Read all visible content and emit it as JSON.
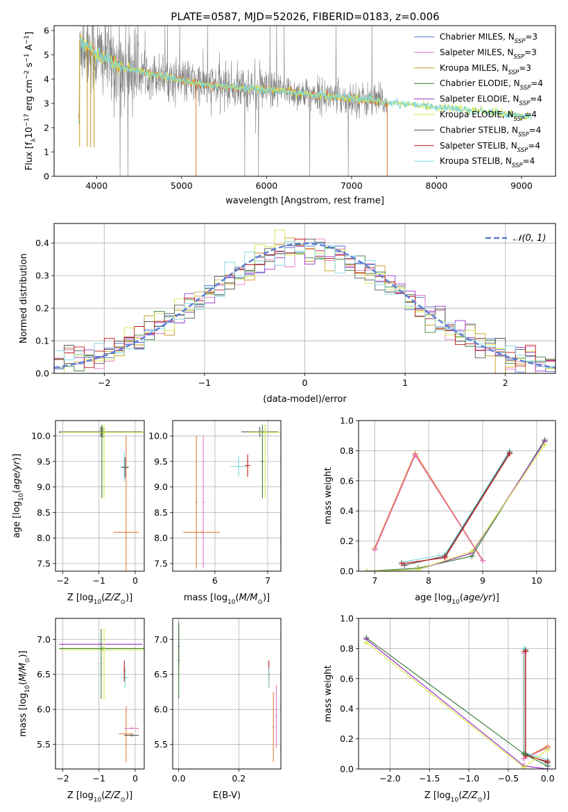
{
  "figure": {
    "title": "PLATE=0587, MJD=52026, FIBERID=0183, z=0.006"
  },
  "colors": {
    "chabrier_miles": "#4f6fd0",
    "salpeter_miles": "#e377c2",
    "kroupa_miles": "#c9961a",
    "chabrier_elodie": "#3a7d3a",
    "salpeter_elodie": "#9b30c8",
    "kroupa_elodie": "#d6e64a",
    "chabrier_stelib": "#555555",
    "salpeter_stelib": "#c01818",
    "kroupa_stelib": "#7fd6dc",
    "data": "#808080",
    "model_orange": "#e07b39",
    "gaussian": "#5b7fd6",
    "grid": "#b0b0b0"
  },
  "legend": {
    "items": [
      {
        "name": "Chabrier MILES",
        "nssp": "3",
        "color_key": "chabrier_miles"
      },
      {
        "name": "Salpeter MILES",
        "nssp": "3",
        "color_key": "salpeter_miles"
      },
      {
        "name": "Kroupa MILES",
        "nssp": "3",
        "color_key": "kroupa_miles"
      },
      {
        "name": "Chabrier ELODIE",
        "nssp": "4",
        "color_key": "chabrier_elodie"
      },
      {
        "name": "Salpeter ELODIE",
        "nssp": "4",
        "color_key": "salpeter_elodie"
      },
      {
        "name": "Kroupa ELODIE",
        "nssp": "4",
        "color_key": "kroupa_elodie"
      },
      {
        "name": "Chabrier STELIB",
        "nssp": "4",
        "color_key": "chabrier_stelib"
      },
      {
        "name": "Salpeter STELIB",
        "nssp": "4",
        "color_key": "salpeter_stelib"
      },
      {
        "name": "Kroupa STELIB",
        "nssp": "4",
        "color_key": "kroupa_stelib"
      }
    ],
    "gaussian_label": "𝒩(0, 1)"
  },
  "chart_data": [
    {
      "id": "spectrum",
      "type": "line",
      "xlabel": "wavelength [Angstrom, rest frame]",
      "ylabel": "Flux [f_λ 10^-17 erg cm^-2 s^-1 A^-1]",
      "xlim": [
        3500,
        9400
      ],
      "ylim": [
        0,
        6.2
      ],
      "xticks": [
        4000,
        5000,
        6000,
        7000,
        8000,
        9000
      ],
      "yticks": [
        0,
        1,
        2,
        3,
        4,
        5,
        6
      ],
      "grid": false,
      "legend": "top-right",
      "continuum": {
        "x": [
          3800,
          3900,
          4000,
          4100,
          4200,
          4400,
          4600,
          4800,
          5000,
          5200,
          5500,
          5800,
          6000,
          6300,
          6600,
          7000,
          7300,
          7500,
          8000,
          8500,
          9000,
          9100
        ],
        "y": [
          5.6,
          5.3,
          5.0,
          4.9,
          4.6,
          4.4,
          4.25,
          4.1,
          3.95,
          3.8,
          3.7,
          3.6,
          3.55,
          3.45,
          3.35,
          3.2,
          3.1,
          3.0,
          2.85,
          2.7,
          2.5,
          2.45
        ]
      },
      "data_range": [
        3790,
        7420
      ],
      "models_range": [
        3790,
        9120
      ]
    },
    {
      "id": "residuals",
      "type": "histogram",
      "xlabel": "(data-model)/error",
      "ylabel": "Normed distribution",
      "xlim": [
        -2.5,
        2.5
      ],
      "ylim": [
        0,
        0.46
      ],
      "xticks": [
        -2,
        -1,
        0,
        1,
        2
      ],
      "yticks": [
        0.0,
        0.1,
        0.2,
        0.3,
        0.4
      ],
      "grid": true,
      "legend": "top-right",
      "bin_width": 0.1,
      "gaussian": {
        "mean": 0,
        "sigma": 1
      }
    },
    {
      "id": "age_vs_z",
      "type": "errorbar",
      "xlabel": "Z [log10(Z/Z⊙)]",
      "ylabel": "age  [log10(age/yr)]",
      "xlim": [
        -2.2,
        0.25
      ],
      "ylim": [
        7.35,
        10.3
      ],
      "xticks": [
        -2,
        -1,
        0
      ],
      "yticks": [
        7.5,
        8.0,
        8.5,
        9.0,
        9.5,
        10.0
      ],
      "grid": true,
      "points": [
        {
          "x": -0.95,
          "y": 10.08,
          "xerr": 1.15,
          "yerr": 0.1,
          "c": "chabrier_stelib"
        },
        {
          "x": -0.9,
          "y": 10.07,
          "xerr": 1.2,
          "yerr": 0.1,
          "c": "chabrier_elodie"
        },
        {
          "x": -0.85,
          "y": 10.07,
          "xerr": 1.2,
          "yerr": 0.08,
          "c": "kroupa_elodie"
        },
        {
          "x": -0.92,
          "y": 9.5,
          "xerr": 0.02,
          "yerr": 0.72,
          "c": "chabrier_elodie"
        },
        {
          "x": -0.86,
          "y": 9.5,
          "xerr": 0.02,
          "yerr": 0.72,
          "c": "kroupa_elodie"
        },
        {
          "x": -0.3,
          "y": 9.4,
          "xerr": 0.12,
          "yerr": 0.3,
          "c": "kroupa_stelib"
        },
        {
          "x": -0.28,
          "y": 9.38,
          "xerr": 0.1,
          "yerr": 0.2,
          "c": "chabrier_stelib"
        },
        {
          "x": -0.25,
          "y": 8.11,
          "xerr": 0.35,
          "yerr": 1.9,
          "c": "model_orange"
        }
      ]
    },
    {
      "id": "age_vs_mass",
      "type": "errorbar",
      "xlabel": "mass [log10(M/M⊙)]",
      "ylabel": "",
      "xlim": [
        5.2,
        7.25
      ],
      "ylim": [
        7.35,
        10.3
      ],
      "xticks": [
        6,
        7
      ],
      "yticks": [
        7.5,
        8.0,
        8.5,
        9.0,
        9.5,
        10.0
      ],
      "grid": true,
      "points": [
        {
          "x": 6.85,
          "y": 10.08,
          "xerr": 0.35,
          "yerr": 0.1,
          "c": "chabrier_stelib"
        },
        {
          "x": 6.95,
          "y": 10.07,
          "xerr": 0.3,
          "yerr": 0.08,
          "c": "kroupa_elodie"
        },
        {
          "x": 6.9,
          "y": 9.5,
          "xerr": 0.02,
          "yerr": 0.72,
          "c": "chabrier_elodie"
        },
        {
          "x": 6.95,
          "y": 9.5,
          "xerr": 0.02,
          "yerr": 0.72,
          "c": "kroupa_elodie"
        },
        {
          "x": 6.45,
          "y": 9.4,
          "xerr": 0.15,
          "yerr": 0.2,
          "c": "kroupa_stelib"
        },
        {
          "x": 6.62,
          "y": 9.42,
          "xerr": 0.05,
          "yerr": 0.22,
          "c": "salpeter_stelib"
        },
        {
          "x": 5.75,
          "y": 8.11,
          "xerr": 0.35,
          "yerr": 0.02,
          "c": "model_orange"
        },
        {
          "x": 5.65,
          "y": 8.7,
          "xerr": 0.02,
          "yerr": 1.3,
          "c": "model_orange"
        },
        {
          "x": 5.78,
          "y": 8.7,
          "xerr": 0.02,
          "yerr": 1.3,
          "c": "salpeter_miles"
        }
      ]
    },
    {
      "id": "weight_vs_age",
      "type": "line",
      "xlabel": "age  [log10(age/yr)]",
      "ylabel": "mass weight",
      "xlim": [
        6.7,
        10.35
      ],
      "ylim": [
        0,
        1
      ],
      "xticks": [
        7,
        8,
        9,
        10
      ],
      "yticks": [
        0.0,
        0.2,
        0.4,
        0.6,
        0.8,
        1.0
      ],
      "grid": true,
      "series": [
        {
          "c": "model_orange",
          "x": [
            7.0,
            7.75,
            9.0
          ],
          "y": [
            0.15,
            0.78,
            0.07
          ]
        },
        {
          "c": "salpeter_miles",
          "x": [
            7.0,
            7.75,
            9.0
          ],
          "y": [
            0.14,
            0.77,
            0.07
          ]
        },
        {
          "c": "kroupa_stelib",
          "x": [
            7.5,
            8.3,
            9.5
          ],
          "y": [
            0.06,
            0.11,
            0.8
          ]
        },
        {
          "c": "chabrier_stelib",
          "x": [
            7.55,
            8.3,
            9.5
          ],
          "y": [
            0.04,
            0.1,
            0.79
          ]
        },
        {
          "c": "salpeter_stelib",
          "x": [
            7.5,
            8.3,
            9.5
          ],
          "y": [
            0.05,
            0.09,
            0.78
          ]
        },
        {
          "c": "chabrier_elodie",
          "x": [
            6.85,
            7.8,
            8.8,
            10.15
          ],
          "y": [
            0.0,
            0.02,
            0.1,
            0.87
          ]
        },
        {
          "c": "salpeter_elodie",
          "x": [
            6.85,
            7.8,
            8.8,
            10.15
          ],
          "y": [
            0.0,
            0.01,
            0.12,
            0.86
          ]
        },
        {
          "c": "kroupa_elodie",
          "x": [
            6.85,
            7.8,
            8.8,
            10.15
          ],
          "y": [
            0.0,
            0.01,
            0.13,
            0.84
          ]
        }
      ]
    },
    {
      "id": "mass_vs_z",
      "type": "errorbar",
      "xlabel": "Z [log10(Z/Z⊙)]",
      "ylabel": "mass [log10(M/M⊙)]",
      "xlim": [
        -2.2,
        0.25
      ],
      "ylim": [
        5.15,
        7.3
      ],
      "xticks": [
        -2,
        -1,
        0
      ],
      "yticks": [
        5.5,
        6.0,
        6.5,
        7.0
      ],
      "grid": true,
      "points": [
        {
          "x": -0.95,
          "y": 6.93,
          "xerr": 1.15,
          "yerr": 0.02,
          "c": "salpeter_elodie"
        },
        {
          "x": -0.9,
          "y": 6.87,
          "xerr": 1.2,
          "yerr": 0.02,
          "c": "chabrier_elodie"
        },
        {
          "x": -0.88,
          "y": 6.85,
          "xerr": 1.2,
          "yerr": 0.02,
          "c": "kroupa_elodie"
        },
        {
          "x": -0.94,
          "y": 6.65,
          "xerr": 0.02,
          "yerr": 0.5,
          "c": "chabrier_elodie"
        },
        {
          "x": -0.86,
          "y": 6.65,
          "xerr": 0.02,
          "yerr": 0.5,
          "c": "kroupa_elodie"
        },
        {
          "x": -0.28,
          "y": 6.45,
          "xerr": 0.1,
          "yerr": 0.15,
          "c": "kroupa_stelib"
        },
        {
          "x": -0.3,
          "y": 6.55,
          "xerr": 0.02,
          "yerr": 0.15,
          "c": "salpeter_stelib"
        },
        {
          "x": -0.25,
          "y": 5.65,
          "xerr": 0.2,
          "yerr": 0.4,
          "c": "model_orange"
        },
        {
          "x": -0.1,
          "y": 5.73,
          "xerr": 0.2,
          "yerr": 0.02,
          "c": "salpeter_miles"
        },
        {
          "x": -0.1,
          "y": 5.63,
          "xerr": 0.2,
          "yerr": 0.02,
          "c": "chabrier_stelib"
        }
      ]
    },
    {
      "id": "mass_vs_ebv",
      "type": "errorbar",
      "xlabel": "E(B-V)",
      "ylabel": "",
      "xlim": [
        -0.02,
        0.34
      ],
      "ylim": [
        5.15,
        7.3
      ],
      "xticks": [
        0.0,
        0.2
      ],
      "yticks": [
        5.5,
        6.0,
        6.5,
        7.0
      ],
      "grid": true,
      "points": [
        {
          "x": 0.0,
          "y": 6.85,
          "xerr": 0.003,
          "yerr": 0.35,
          "c": "kroupa_elodie"
        },
        {
          "x": 0.0,
          "y": 6.9,
          "xerr": 0.003,
          "yerr": 0.3,
          "c": "salpeter_elodie"
        },
        {
          "x": 0.0,
          "y": 6.7,
          "xerr": 0.003,
          "yerr": 0.55,
          "c": "chabrier_elodie"
        },
        {
          "x": 0.3,
          "y": 6.5,
          "xerr": 0.003,
          "yerr": 0.2,
          "c": "salpeter_stelib"
        },
        {
          "x": 0.3,
          "y": 6.45,
          "xerr": 0.003,
          "yerr": 0.15,
          "c": "kroupa_stelib"
        },
        {
          "x": 0.315,
          "y": 5.75,
          "xerr": 0.003,
          "yerr": 0.5,
          "c": "model_orange"
        },
        {
          "x": 0.325,
          "y": 5.9,
          "xerr": 0.003,
          "yerr": 0.45,
          "c": "salpeter_miles"
        }
      ]
    },
    {
      "id": "weight_vs_z",
      "type": "line",
      "xlabel": "Z [log10(Z/Z⊙)]",
      "ylabel": "mass weight",
      "xlim": [
        -2.4,
        0.1
      ],
      "ylim": [
        0,
        1
      ],
      "xticks": [
        -2.0,
        -1.5,
        -1.0,
        -0.5,
        0.0
      ],
      "yticks": [
        0.0,
        0.2,
        0.4,
        0.6,
        0.8,
        1.0
      ],
      "grid": true,
      "series": [
        {
          "c": "model_orange",
          "x": [
            -0.3,
            -0.3,
            0.0
          ],
          "y": [
            0.78,
            0.07,
            0.15
          ]
        },
        {
          "c": "salpeter_miles",
          "x": [
            -0.3,
            -0.3,
            0.0
          ],
          "y": [
            0.77,
            0.07,
            0.14
          ]
        },
        {
          "c": "kroupa_stelib",
          "x": [
            -0.3,
            -0.3,
            0.0
          ],
          "y": [
            0.8,
            0.11,
            0.06
          ]
        },
        {
          "c": "chabrier_stelib",
          "x": [
            -0.28,
            -0.28,
            0.0
          ],
          "y": [
            0.79,
            0.1,
            0.04
          ]
        },
        {
          "c": "salpeter_stelib",
          "x": [
            -0.28,
            -0.28,
            0.0
          ],
          "y": [
            0.78,
            0.09,
            0.05
          ]
        },
        {
          "c": "chabrier_elodie",
          "x": [
            -2.3,
            -0.3,
            0.0
          ],
          "y": [
            0.87,
            0.1,
            0.02
          ]
        },
        {
          "c": "salpeter_elodie",
          "x": [
            -2.3,
            -0.3,
            0.0
          ],
          "y": [
            0.86,
            0.02,
            0.0
          ]
        },
        {
          "c": "kroupa_elodie",
          "x": [
            -2.3,
            -0.3,
            0.0
          ],
          "y": [
            0.84,
            0.01,
            0.13
          ]
        }
      ]
    }
  ]
}
